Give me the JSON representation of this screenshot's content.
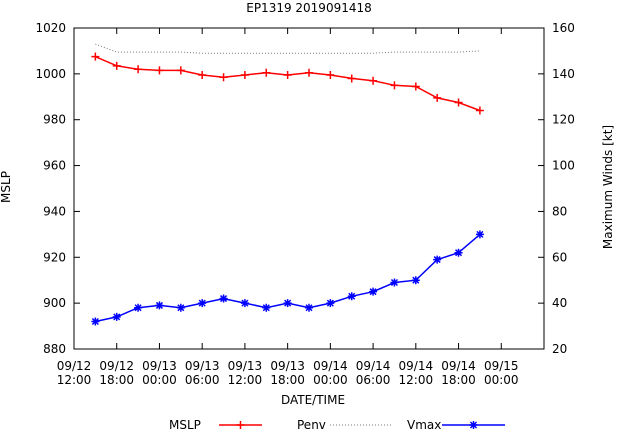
{
  "chart_data": {
    "type": "line",
    "title": "EP1319 2019091418",
    "xlabel": "DATE/TIME",
    "ylabel_left": "MSLP",
    "ylabel_right": "Maximum Winds [kt]",
    "x_unit": "hours since 09/12 12:00",
    "xlim": [
      0,
      66
    ],
    "ylim_left": [
      880,
      1020
    ],
    "ylim_right": [
      20,
      160
    ],
    "grid": false,
    "legend_position": "bottom",
    "x_ticks": [
      {
        "x": 0,
        "line1": "09/12",
        "line2": "12:00"
      },
      {
        "x": 6,
        "line1": "09/12",
        "line2": "18:00"
      },
      {
        "x": 12,
        "line1": "09/13",
        "line2": "00:00"
      },
      {
        "x": 18,
        "line1": "09/13",
        "line2": "06:00"
      },
      {
        "x": 24,
        "line1": "09/13",
        "line2": "12:00"
      },
      {
        "x": 30,
        "line1": "09/13",
        "line2": "18:00"
      },
      {
        "x": 36,
        "line1": "09/14",
        "line2": "00:00"
      },
      {
        "x": 42,
        "line1": "09/14",
        "line2": "06:00"
      },
      {
        "x": 48,
        "line1": "09/14",
        "line2": "12:00"
      },
      {
        "x": 54,
        "line1": "09/14",
        "line2": "18:00"
      },
      {
        "x": 60,
        "line1": "09/15",
        "line2": "00:00"
      }
    ],
    "y_ticks_left": [
      "880",
      "900",
      "920",
      "940",
      "960",
      "980",
      "1000",
      "1020"
    ],
    "y_ticks_right": [
      "20",
      "40",
      "60",
      "80",
      "100",
      "120",
      "140",
      "160"
    ],
    "series": [
      {
        "name": "MSLP",
        "axis": "left",
        "color": "#ff0000",
        "style": "line+plus-markers",
        "x": [
          3,
          6,
          9,
          12,
          15,
          18,
          21,
          24,
          27,
          30,
          33,
          36,
          39,
          42,
          45,
          48,
          51,
          54,
          57
        ],
        "y": [
          1007.5,
          1003.5,
          1002,
          1001.5,
          1001.5,
          999.5,
          998.5,
          999.5,
          1000.5,
          999.5,
          1000.5,
          999.5,
          998,
          997,
          995,
          994.5,
          989.5,
          987.5,
          984
        ]
      },
      {
        "name": "Penv",
        "axis": "left",
        "color": "#777777",
        "style": "dotted",
        "x": [
          3,
          6,
          9,
          12,
          15,
          18,
          21,
          24,
          27,
          30,
          33,
          36,
          39,
          42,
          45,
          48,
          51,
          54,
          57
        ],
        "y": [
          1013,
          1009.5,
          1009.5,
          1009.5,
          1009.5,
          1009,
          1009,
          1009,
          1009,
          1009,
          1009,
          1009,
          1009,
          1009,
          1009.5,
          1009.5,
          1009.5,
          1009.5,
          1010
        ]
      },
      {
        "name": "Vmax",
        "axis": "right",
        "color": "#0000ff",
        "style": "line+star-markers",
        "x": [
          3,
          6,
          9,
          12,
          15,
          18,
          21,
          24,
          27,
          30,
          33,
          36,
          39,
          42,
          45,
          48,
          51,
          54,
          57
        ],
        "y": [
          32,
          34,
          38,
          39,
          38,
          40,
          42,
          40,
          38,
          40,
          38,
          40,
          43,
          45,
          49,
          50,
          59,
          62,
          70
        ]
      }
    ]
  }
}
